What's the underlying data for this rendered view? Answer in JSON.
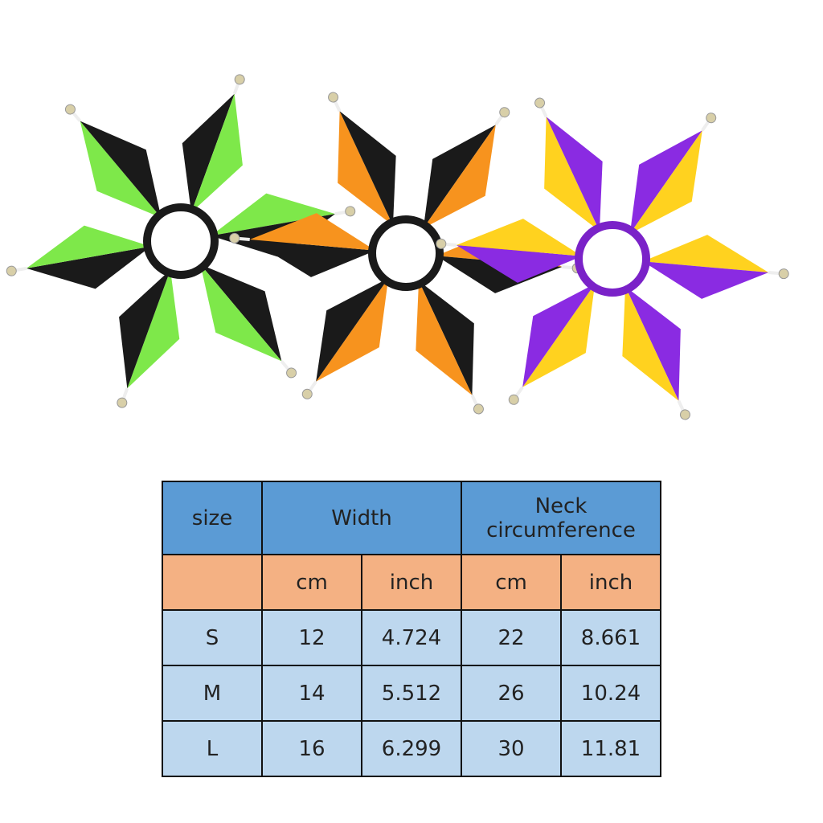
{
  "table": {
    "header": [
      "size",
      "Width",
      "Neck circumference"
    ],
    "units": [
      "cm",
      "inch",
      "cm",
      "inch"
    ],
    "rows": [
      [
        "S",
        12,
        4.724,
        22,
        8.661
      ],
      [
        "M",
        14,
        5.512,
        26,
        10.24
      ],
      [
        "L",
        16,
        6.299,
        30,
        11.81
      ]
    ]
  }
}
